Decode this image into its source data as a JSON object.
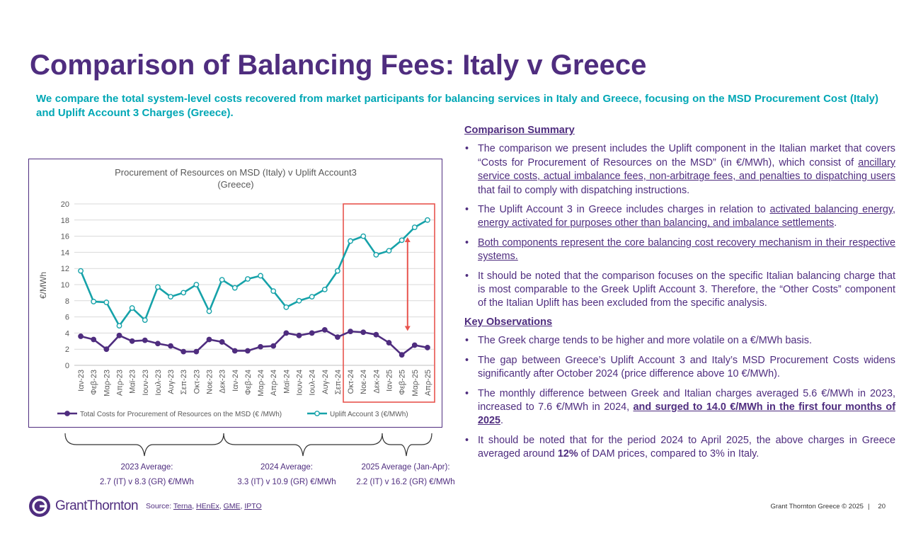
{
  "title": "Comparison of Balancing Fees: Italy v Greece",
  "intro": "We compare the total system-level costs recovered from market participants for balancing services in Italy and Greece, focusing on the MSD Procurement Cost (Italy) and Uplift Account 3 Charges (Greece).",
  "chart_data": {
    "type": "line",
    "title": "Procurement of Resources on MSD (Italy) v Uplift Account3 (Greece)",
    "title_lines": [
      "Procurement of Resources on MSD (Italy) v Uplift Account3",
      "(Greece)"
    ],
    "ylabel": "€/MWh",
    "ylim": [
      0,
      20
    ],
    "yticks": [
      "0",
      "2",
      "4",
      "6",
      "8",
      "10",
      "12",
      "14",
      "16",
      "18",
      "20"
    ],
    "grid": true,
    "legend_position": "bottom",
    "categories": [
      "Ιαν-23",
      "Φεβ-23",
      "Μαρ-23",
      "Απρ-23",
      "Μαϊ-23",
      "Ιουν-23",
      "Ιουλ-23",
      "Αυγ-23",
      "Σεπ-23",
      "Οκτ-23",
      "Νοε-23",
      "Δεκ-23",
      "Ιαν-24",
      "Φεβ-24",
      "Μαρ-24",
      "Απρ-24",
      "Μαϊ-24",
      "Ιουν-24",
      "Ιουλ-24",
      "Αυγ-24",
      "Σεπ-24",
      "Οκτ-24",
      "Νοε-24",
      "Δεκ-24",
      "Ιαν-25",
      "Φεβ-25",
      "Μαρ-25",
      "Απρ-25"
    ],
    "series": [
      {
        "name": "Total Costs for Procurement of Resources on the MSD (€ /MWh)",
        "color": "#4f2d7f",
        "marker": "filled",
        "values": [
          3.6,
          3.2,
          2.0,
          3.7,
          3.0,
          3.1,
          2.7,
          2.4,
          1.7,
          1.7,
          3.2,
          2.9,
          1.8,
          1.8,
          2.3,
          2.4,
          4.0,
          3.7,
          4.0,
          4.4,
          3.5,
          4.2,
          4.1,
          3.8,
          2.8,
          1.3,
          2.5,
          2.2
        ]
      },
      {
        "name": "Uplift Account 3 (€/MWh)",
        "color": "#16a2a9",
        "marker": "hollow",
        "values": [
          11.7,
          7.9,
          7.8,
          4.9,
          7.1,
          5.6,
          9.7,
          8.5,
          9.0,
          10.0,
          6.7,
          10.6,
          9.6,
          10.7,
          11.1,
          9.2,
          7.2,
          8.0,
          8.5,
          9.4,
          11.7,
          15.4,
          16.0,
          13.7,
          14.2,
          15.5,
          17.1,
          18.0
        ]
      }
    ],
    "highlight": {
      "from_category": "Οκτ-24",
      "to_category": "Απρ-25",
      "color": "#e8544e"
    },
    "gap_arrow": {
      "category": "Μαρ-25",
      "color": "#e8544e"
    }
  },
  "averages": [
    {
      "label": "2023 Average:",
      "value": "2.7 (IT) v 8.3 (GR) €/MWh"
    },
    {
      "label": "2024 Average:",
      "value": "3.3 (IT) v 10.9 (GR) €/MWh"
    },
    {
      "label": "2025 Average (Jan-Apr):",
      "value": "2.2 (IT) v 16.2 (GR) €/MWh"
    }
  ],
  "summary": {
    "heading": "Comparison Summary",
    "b1": {
      "p1": "The comparison we present includes the Uplift component in the Italian market that covers “Costs for Procurement of Resources on the MSD” (in €/MWh), which consist of ",
      "link": "ancillary service costs, actual imbalance fees, non-arbitrage fees, and penalties to dispatching users",
      "p2": " that fail to comply with dispatching instructions."
    },
    "b2": {
      "p1": "The Uplift Account 3 in Greece includes charges in relation to ",
      "link": "activated balancing energy, energy activated for purposes other than balancing, and imbalance settlements",
      "p2": "."
    },
    "b3": "Both components represent the core balancing cost recovery mechanism in their respective systems.",
    "b4": "It should be noted that the comparison focuses on the specific Italian balancing charge that is most comparable to the Greek Uplift Account 3. Therefore, the “Other Costs” component of the Italian Uplift has been excluded from the specific analysis."
  },
  "observations": {
    "heading": "Key Observations",
    "o1": "The Greek charge tends to be higher and more volatile on a €/MWh basis.",
    "o2": "The gap between Greece’s Uplift Account 3 and Italy’s MSD Procurement Costs widens significantly after October 2024 (price difference above 10 €/MWh).",
    "o3": {
      "p1": "The monthly difference between Greek and Italian charges averaged 5.6 €/MWh in 2023, increased to 7.6 €/MWh in 2024, ",
      "emph": "and surged to 14.0 €/MWh in the first four months of 2025",
      "p2": "."
    },
    "o4": {
      "p1": "It should be noted that for the period 2024 to April 2025, the above charges in Greece averaged around ",
      "emph": "12%",
      "p2": " of DAM prices, compared to 3% in Italy."
    }
  },
  "footer": {
    "logo": "GrantThornton",
    "source_label": "Source:",
    "sources": [
      "Terna",
      "HEnEx",
      "GME",
      "IPTO"
    ],
    "copyright": "Grant Thornton Greece  © 2025",
    "separator": "|",
    "page": "20"
  },
  "colors": {
    "brand_purple": "#4f2d7f",
    "teal": "#16a2a9",
    "intro_teal": "#00a7b5",
    "highlight_red": "#e8544e"
  }
}
